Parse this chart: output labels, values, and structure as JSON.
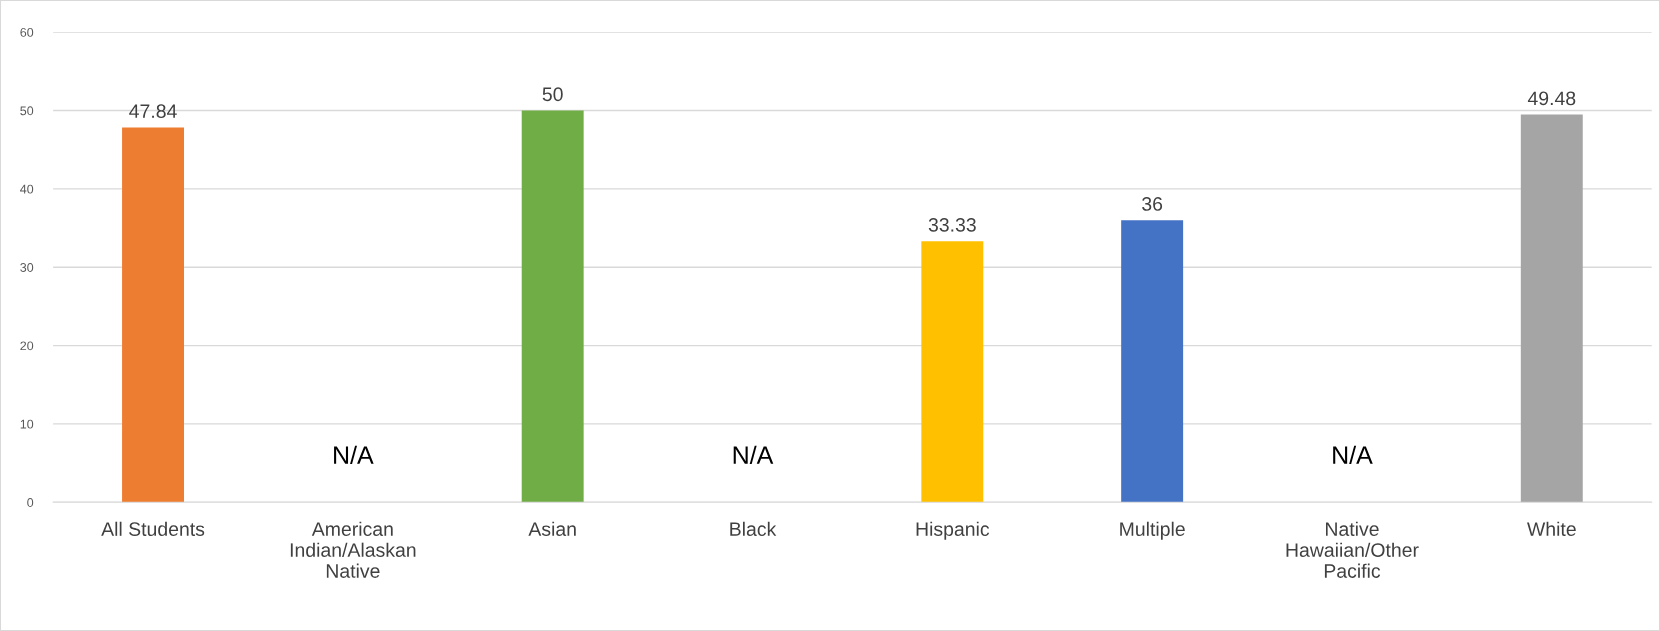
{
  "chart_data": {
    "type": "bar",
    "categories": [
      "All Students",
      "American Indian/Alaskan Native",
      "Asian",
      "Black",
      "Hispanic",
      "Multiple",
      "Native Hawaiian/Other Pacific",
      "White"
    ],
    "values": [
      47.84,
      null,
      50,
      null,
      33.33,
      36,
      null,
      49.48
    ],
    "colors": [
      "#ed7d31",
      null,
      "#70ad47",
      null,
      "#ffc000",
      "#4472c4",
      null,
      "#a5a5a5"
    ],
    "value_labels": [
      "47.84",
      "N/A",
      "50",
      "N/A",
      "33.33",
      "36",
      "N/A",
      "49.48"
    ],
    "ylim": [
      0,
      60
    ],
    "yticks": [
      0,
      10,
      20,
      30,
      40,
      50,
      60
    ],
    "grid": "y",
    "legend": false
  }
}
